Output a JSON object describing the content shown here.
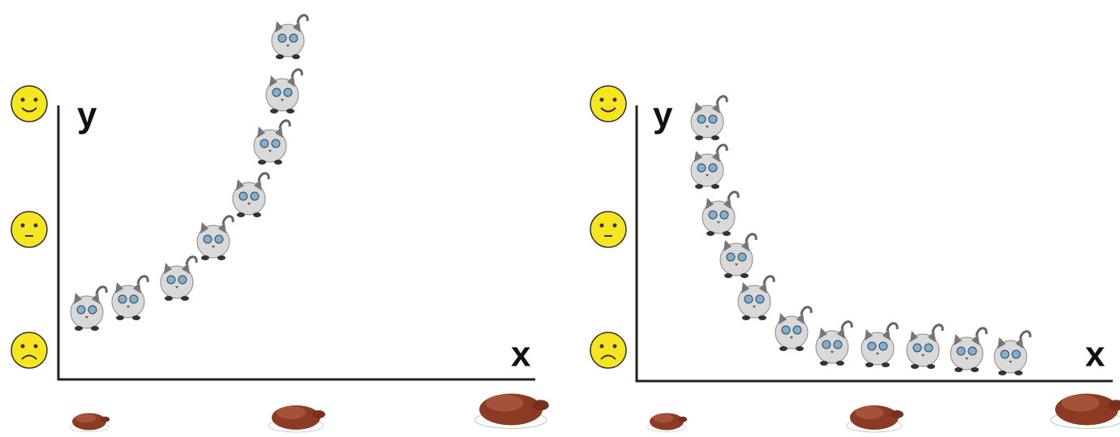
{
  "panels": [
    {
      "y_label": "y",
      "x_label": "x"
    },
    {
      "y_label": "y",
      "x_label": "x"
    }
  ]
}
